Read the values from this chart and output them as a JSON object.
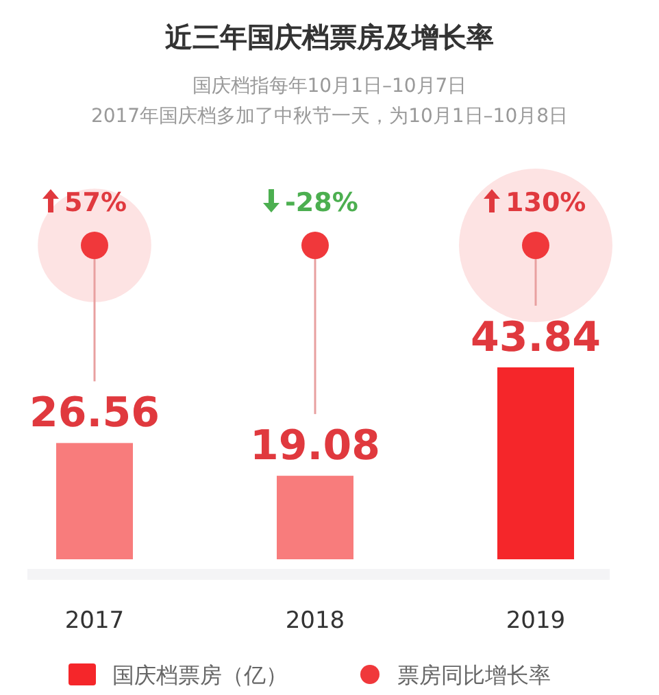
{
  "chart_data": {
    "type": "bar",
    "title": "近三年国庆档票房及增长率",
    "subtitle": "国庆档指每年10月1日–10月7日\n2017年国庆档多加了中秋节一天，为10月1日–10月8日",
    "categories": [
      "2017",
      "2018",
      "2019"
    ],
    "series": [
      {
        "name": "国庆档票房（亿）",
        "colors": [
          "#f87c7c",
          "#f87c7c",
          "#f5262a"
        ],
        "color": "#f5262a",
        "values": [
          26.56,
          19.08,
          43.84
        ]
      }
    ],
    "annotations": [
      {
        "text": "57%",
        "x": "2017"
      },
      {
        "text": "-28%",
        "x": "2018"
      },
      {
        "text": "130%",
        "x": "2019"
      },
      "票房同比增长率"
    ],
    "data_labels": true,
    "legend": "bottom"
  }
}
